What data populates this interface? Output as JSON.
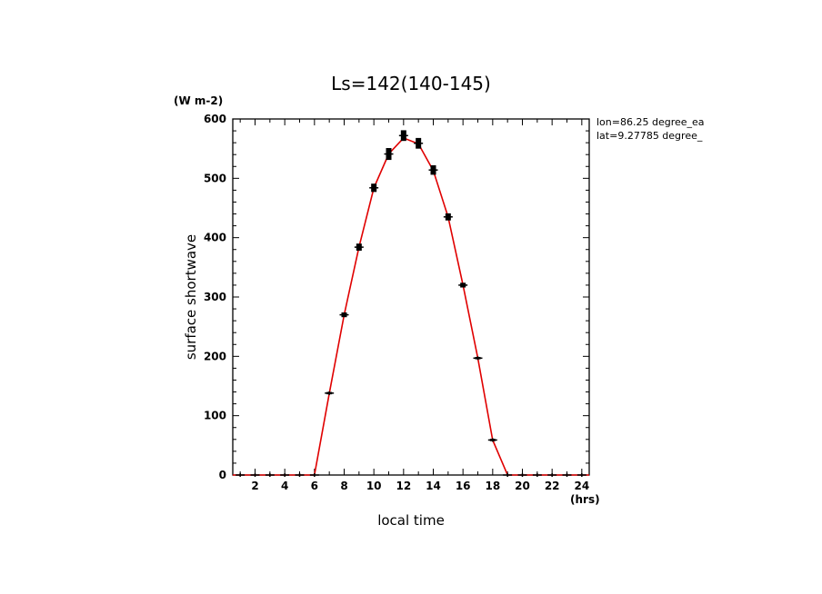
{
  "chart_data": {
    "type": "line",
    "title": "Ls=142(140-145)",
    "xlabel": "local time",
    "ylabel": "surface shortwave",
    "x_unit": "(hrs)",
    "y_unit": "(W m-2)",
    "annotations": [
      "lon=86.25 degree_ea",
      "lat=9.27785 degree_"
    ],
    "xlim": [
      0.5,
      24.5
    ],
    "ylim": [
      0,
      600
    ],
    "x_ticks": [
      2,
      4,
      6,
      8,
      10,
      12,
      14,
      16,
      18,
      20,
      22,
      24
    ],
    "y_ticks": [
      0,
      100,
      200,
      300,
      400,
      500,
      600
    ],
    "grid": false,
    "line_color": "#e00000",
    "marker_color": "#000000",
    "line_series": {
      "x": [
        0.5,
        1,
        2,
        3,
        4,
        5,
        6,
        7,
        8,
        9,
        10,
        11,
        12,
        13,
        14,
        15,
        16,
        17,
        18,
        19,
        20,
        21,
        22,
        23,
        24,
        24.5
      ],
      "y": [
        0,
        0,
        0,
        0,
        0,
        0,
        0,
        138,
        270,
        384,
        484,
        541,
        568,
        558,
        513,
        435,
        320,
        197,
        59,
        0,
        0,
        0,
        0,
        0,
        0,
        0
      ]
    },
    "scatter_series": {
      "x": [
        1,
        2,
        3,
        4,
        5,
        6,
        7,
        8,
        9,
        10,
        11,
        12,
        13,
        14,
        15,
        16,
        17,
        18,
        19,
        20,
        21,
        22,
        23,
        24
      ],
      "y": [
        0,
        0,
        0,
        0,
        0,
        0,
        138,
        270,
        384,
        484,
        541,
        572,
        559,
        514,
        435,
        320,
        197,
        59,
        0,
        0,
        0,
        0,
        0,
        0
      ],
      "err": [
        0,
        0,
        0,
        0,
        0,
        0,
        2,
        4,
        6,
        7,
        10,
        9,
        9,
        8,
        6,
        4,
        2,
        2,
        0,
        0,
        0,
        0,
        0,
        0
      ]
    }
  }
}
